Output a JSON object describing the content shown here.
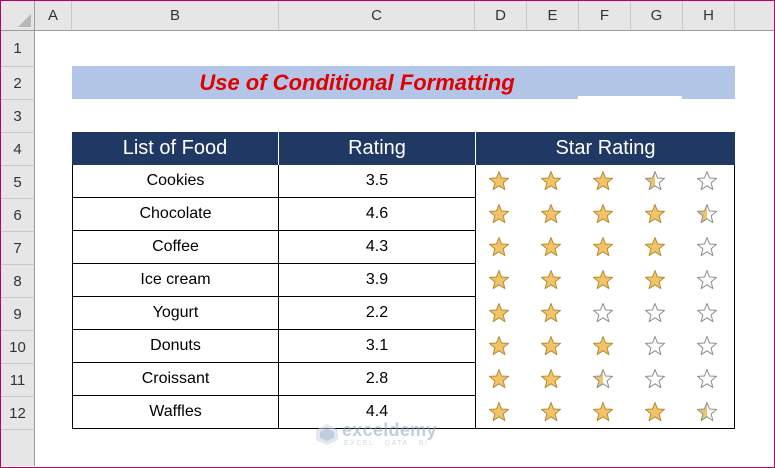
{
  "columns": [
    "A",
    "B",
    "C",
    "D",
    "E",
    "F",
    "G",
    "H"
  ],
  "rows": [
    "1",
    "2",
    "3",
    "4",
    "5",
    "6",
    "7",
    "8",
    "9",
    "10",
    "11",
    "12"
  ],
  "title": "Use of Conditional Formatting",
  "headers": {
    "food": "List of Food",
    "rating": "Rating",
    "stars": "Star Rating"
  },
  "items": [
    {
      "food": "Cookies",
      "rating": "3.5",
      "stars": [
        1,
        1,
        1,
        0.5,
        0
      ]
    },
    {
      "food": "Chocolate",
      "rating": "4.6",
      "stars": [
        1,
        1,
        1,
        1,
        0.5
      ]
    },
    {
      "food": "Coffee",
      "rating": "4.3",
      "stars": [
        1,
        1,
        1,
        1,
        0
      ]
    },
    {
      "food": "Ice cream",
      "rating": "3.9",
      "stars": [
        1,
        1,
        1,
        1,
        0
      ]
    },
    {
      "food": "Yogurt",
      "rating": "2.2",
      "stars": [
        1,
        1,
        0,
        0,
        0
      ]
    },
    {
      "food": "Donuts",
      "rating": "3.1",
      "stars": [
        1,
        1,
        1,
        0,
        0
      ]
    },
    {
      "food": "Croissant",
      "rating": "2.8",
      "stars": [
        1,
        1,
        0.5,
        0,
        0
      ]
    },
    {
      "food": "Waffles",
      "rating": "4.4",
      "stars": [
        1,
        1,
        1,
        1,
        0.5
      ]
    }
  ],
  "colors": {
    "header_fill": "#203864",
    "title_fill": "#b4c6e7",
    "title_text": "#e00000",
    "star_fill": "#f2c469",
    "star_outline": "#8c8c8c"
  },
  "watermark": {
    "name": "exceldemy",
    "tagline": "EXCEL · DATA · BI"
  }
}
